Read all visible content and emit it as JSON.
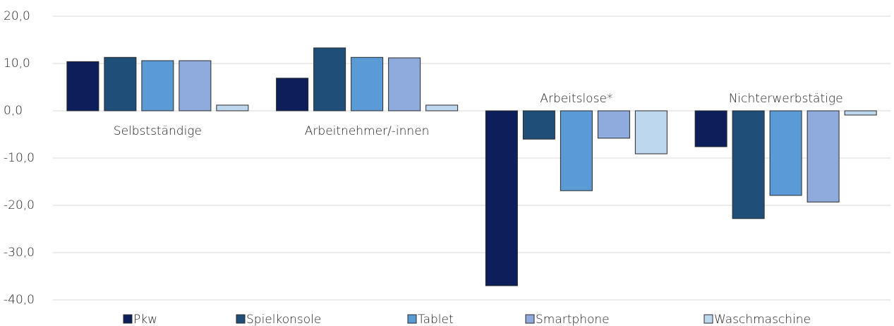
{
  "chart_data": {
    "type": "bar",
    "categories": [
      "Selbstständige",
      "Arbeitnehmer/-innen",
      "Arbeitslose*",
      "Nichterwerbstätige"
    ],
    "series": [
      {
        "name": "Pkw",
        "color": "#0c1f5a",
        "values": [
          10.4,
          6.9,
          -37.0,
          -7.6
        ]
      },
      {
        "name": "Spielkonsole",
        "color": "#1f4e79",
        "values": [
          11.3,
          13.3,
          -6.0,
          -22.8
        ]
      },
      {
        "name": "Tablet",
        "color": "#5b9bd5",
        "values": [
          10.6,
          11.3,
          -16.9,
          -17.9
        ]
      },
      {
        "name": "Smartphone",
        "color": "#8faadc",
        "values": [
          10.6,
          11.2,
          -5.8,
          -19.3
        ]
      },
      {
        "name": "Waschmaschine",
        "color": "#bdd7ee",
        "values": [
          1.2,
          1.2,
          -9.1,
          -0.9
        ]
      }
    ],
    "ylim": [
      -40,
      20
    ],
    "yticks": [
      {
        "value": -40,
        "label": "-40,0"
      },
      {
        "value": -30,
        "label": "-30,0"
      },
      {
        "value": -20,
        "label": "-20,0"
      },
      {
        "value": -10,
        "label": "-10,0"
      },
      {
        "value": 0,
        "label": "0,0"
      },
      {
        "value": 10,
        "label": "10,0"
      },
      {
        "value": 20,
        "label": "20,0"
      }
    ],
    "grid": true,
    "legend": "bottom"
  }
}
